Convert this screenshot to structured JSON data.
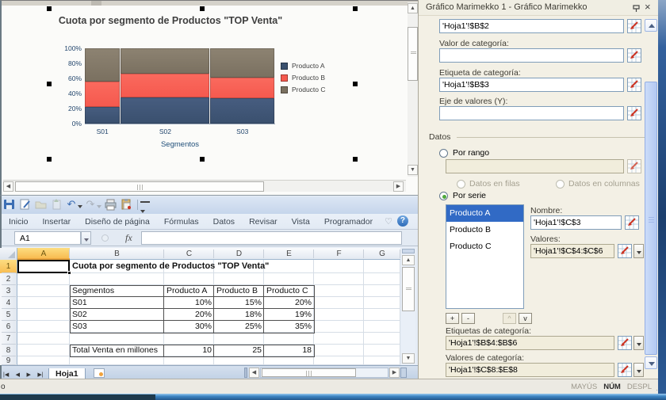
{
  "chart_data": {
    "type": "marimekko",
    "title": "Cuota por segmento de Productos \"TOP Venta\"",
    "categories": [
      "S01",
      "S02",
      "S03"
    ],
    "category_widths": [
      10,
      25,
      18
    ],
    "series": [
      {
        "name": "Producto A",
        "color": "#3A506E",
        "color_top": "#475D80",
        "values": [
          10,
          20,
          30
        ]
      },
      {
        "name": "Producto B",
        "color": "#F5594E",
        "color_top": "#FA6A5E",
        "values": [
          15,
          18,
          25
        ]
      },
      {
        "name": "Producto C",
        "color": "#7A7060",
        "color_top": "#8D8372",
        "values": [
          20,
          19,
          35
        ]
      }
    ],
    "xlabel": "Segmentos",
    "y_ticks": [
      "0%",
      "20%",
      "40%",
      "60%",
      "80%",
      "100%"
    ],
    "ylim": [
      0,
      100
    ],
    "legend_position": "right",
    "legend_entries": [
      "Producto A",
      "Producto B",
      "Producto C"
    ]
  },
  "toolbar": {
    "icons": [
      "save",
      "edit-sheet",
      "open-folder",
      "send-sheet",
      "undo",
      "undo-dropdown",
      "redo",
      "redo-dropdown",
      "print",
      "paste-special",
      "qat-separator",
      "qat-more"
    ]
  },
  "ribbon": {
    "tabs": [
      "Inicio",
      "Insertar",
      "Diseño de página",
      "Fórmulas",
      "Datos",
      "Revisar",
      "Vista",
      "Programador"
    ]
  },
  "formula_bar": {
    "name_box": "A1",
    "fx_label": "fx",
    "formula_value": ""
  },
  "spreadsheet": {
    "visible_columns": [
      "A",
      "B",
      "C",
      "D",
      "E",
      "F",
      "G"
    ],
    "visible_rows": [
      "1",
      "2",
      "3",
      "4",
      "5",
      "6",
      "7",
      "8",
      "9"
    ],
    "selected_cell": "A1",
    "cells": [
      {
        "ref": "B1",
        "text": "Cuota por segmento de Productos \"TOP Venta\"",
        "align": "left",
        "overflow": true,
        "bold": true
      },
      {
        "ref": "B3",
        "text": "Segmentos",
        "align": "left"
      },
      {
        "ref": "C3",
        "text": "Producto A",
        "align": "left"
      },
      {
        "ref": "D3",
        "text": "Producto B",
        "align": "left"
      },
      {
        "ref": "E3",
        "text": "Producto C",
        "align": "left"
      },
      {
        "ref": "B4",
        "text": "S01",
        "align": "left"
      },
      {
        "ref": "C4",
        "text": "10%",
        "align": "right"
      },
      {
        "ref": "D4",
        "text": "15%",
        "align": "right"
      },
      {
        "ref": "E4",
        "text": "20%",
        "align": "right"
      },
      {
        "ref": "B5",
        "text": "S02",
        "align": "left"
      },
      {
        "ref": "C5",
        "text": "20%",
        "align": "right"
      },
      {
        "ref": "D5",
        "text": "18%",
        "align": "right"
      },
      {
        "ref": "E5",
        "text": "19%",
        "align": "right"
      },
      {
        "ref": "B6",
        "text": "S03",
        "align": "left"
      },
      {
        "ref": "C6",
        "text": "30%",
        "align": "right"
      },
      {
        "ref": "D6",
        "text": "25%",
        "align": "right"
      },
      {
        "ref": "E6",
        "text": "35%",
        "align": "right"
      },
      {
        "ref": "B8",
        "text": "Total Venta en millones",
        "align": "left",
        "clip": true
      },
      {
        "ref": "C8",
        "text": "10",
        "align": "right"
      },
      {
        "ref": "D8",
        "text": "25",
        "align": "right"
      },
      {
        "ref": "E8",
        "text": "18",
        "align": "right"
      }
    ]
  },
  "sheet_tabs": {
    "active": "Hoja1"
  },
  "status_bar": {
    "left_text": "o",
    "keys": [
      {
        "label": "MAYÚS",
        "active": false
      },
      {
        "label": "NÚM",
        "active": true
      },
      {
        "label": "DESPL",
        "active": false
      }
    ]
  },
  "panel": {
    "title": "Gráfico Marimekko 1 - Gráfico Marimekko",
    "fields": [
      {
        "label": "",
        "value": "'Hoja1'!$B$2"
      },
      {
        "label": "Valor de categoría:",
        "value": ""
      },
      {
        "label": "Etiqueta de categoría:",
        "value": "'Hoja1'!$B$3"
      },
      {
        "label": "Eje de valores (Y):",
        "value": ""
      }
    ],
    "datos": {
      "group_label": "Datos",
      "por_rango_label": "Por rango",
      "por_rango_value": "",
      "filas_label": "Datos en filas",
      "columnas_label": "Datos en columnas",
      "por_serie_label": "Por serie",
      "series_list": [
        "Producto A",
        "Producto B",
        "Producto C"
      ],
      "selected_series": "Producto A",
      "nombre_label": "Nombre:",
      "nombre_value": "'Hoja1'!$C$3",
      "valores_label": "Valores:",
      "valores_value": "'Hoja1'!$C$4:$C$6",
      "add_label": "+",
      "remove_label": "-",
      "up_label": "^",
      "down_label": "v",
      "etiquetas_label": "Etiquetas de categoría:",
      "etiquetas_value": "'Hoja1'!$B$4:$B$6",
      "valores_cat_label": "Valores de categoría:",
      "valores_cat_value": "'Hoja1'!$C$8:$E$8"
    }
  },
  "icons": {
    "close": "×",
    "pin": "auto-hide-pin",
    "ribbon_collapse": "♡",
    "help": "?",
    "undo_glyph": "↶",
    "redo_glyph": "↷",
    "nav_first": "|◀",
    "nav_prev": "◀",
    "nav_next": "▶",
    "nav_last": "▶|",
    "range_picker": "red-arrow-grid",
    "dropdown": "▾"
  },
  "colors": {
    "list_selection": "#316AC5",
    "selected_header": "#FBCB5C",
    "panel_bg": "#F3F0E5",
    "disabled_input_bg": "#F1EDDC"
  }
}
